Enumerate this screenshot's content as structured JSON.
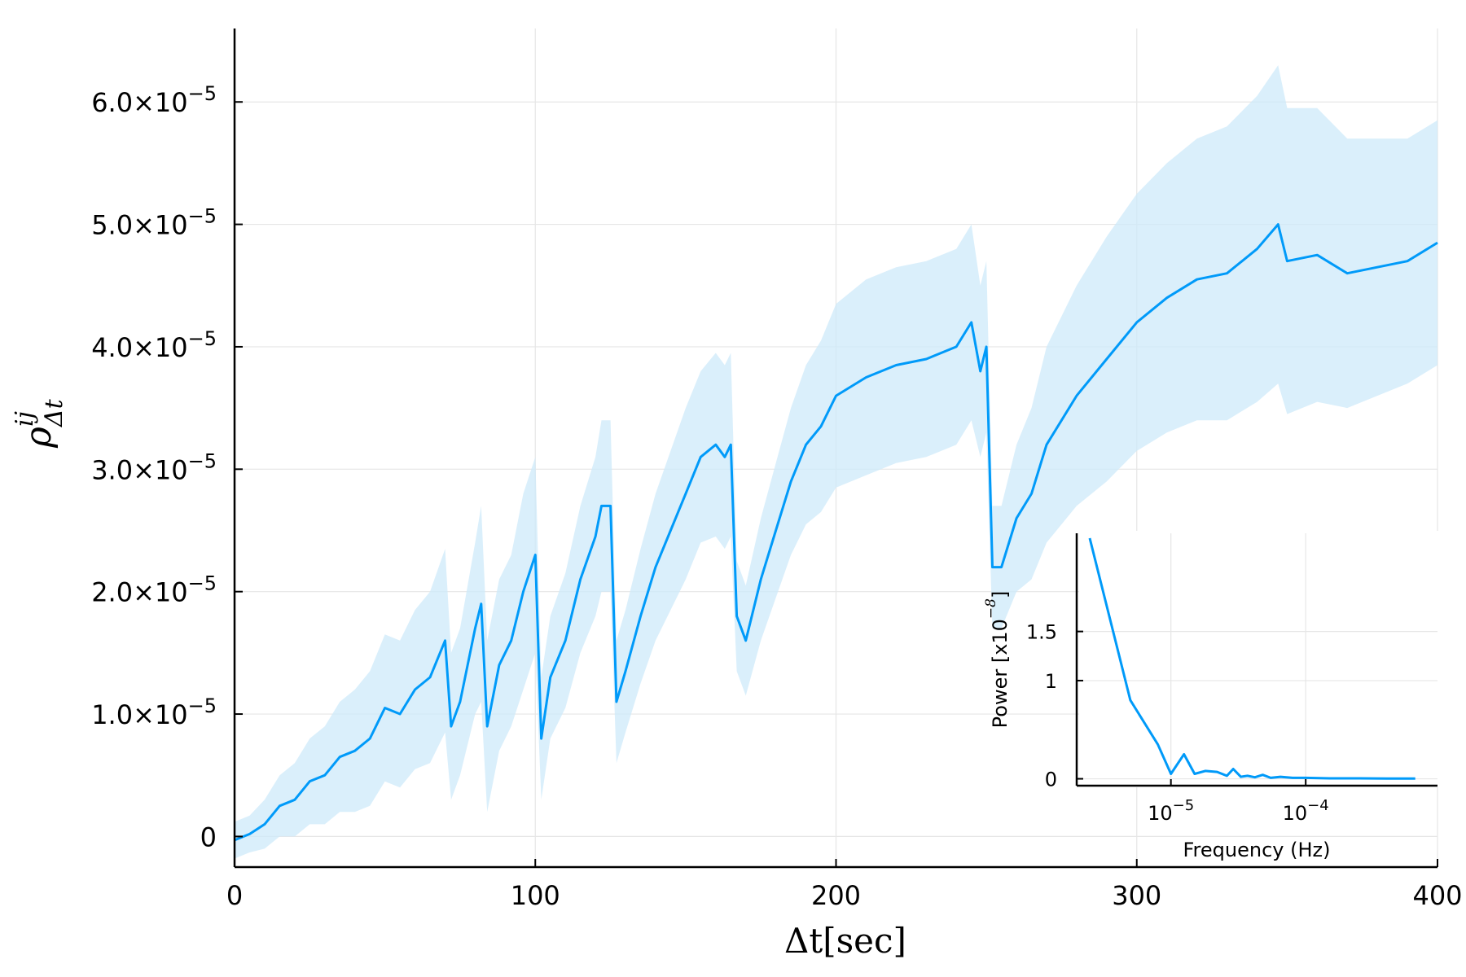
{
  "colors": {
    "series": "#009AF9",
    "band": "#cdeaf9",
    "grid": "#e6e6e6",
    "axis": "#000000",
    "background": "#ffffff"
  },
  "chart_data": [
    {
      "type": "line",
      "title": "",
      "xlabel": "Δt[sec]",
      "ylabel": "ρ",
      "ylabel_sup": "ij",
      "ylabel_sub": "Δt",
      "xlim": [
        0,
        400
      ],
      "ylim": [
        -2.5e-06,
        6.6e-05
      ],
      "xticks": [
        0,
        100,
        200,
        300,
        400
      ],
      "xtick_labels": [
        "0",
        "100",
        "200",
        "300",
        "400"
      ],
      "yticks": [
        0,
        1e-05,
        2e-05,
        3e-05,
        4e-05,
        5e-05,
        6e-05
      ],
      "ytick_labels": [
        {
          "base": "0",
          "exp": ""
        },
        {
          "base": "1.0×10",
          "exp": "−5"
        },
        {
          "base": "2.0×10",
          "exp": "−5"
        },
        {
          "base": "3.0×10",
          "exp": "−5"
        },
        {
          "base": "4.0×10",
          "exp": "−5"
        },
        {
          "base": "5.0×10",
          "exp": "−5"
        },
        {
          "base": "6.0×10",
          "exp": "−5"
        }
      ],
      "grid": true,
      "legend": "none",
      "series": [
        {
          "x": [
            0,
            5,
            10,
            15,
            20,
            25,
            30,
            35,
            40,
            45,
            50,
            55,
            60,
            65,
            70,
            72,
            75,
            80,
            82,
            84,
            88,
            92,
            96,
            98,
            100,
            102,
            105,
            110,
            115,
            120,
            122,
            125,
            127,
            130,
            135,
            140,
            145,
            150,
            155,
            160,
            163,
            165,
            167,
            170,
            175,
            180,
            185,
            190,
            195,
            200,
            210,
            220,
            230,
            240,
            245,
            248,
            250,
            252,
            255,
            260,
            265,
            270,
            280,
            290,
            300,
            310,
            320,
            330,
            340,
            347,
            350,
            360,
            370,
            380,
            390,
            400
          ],
          "y": [
            -3e-07,
            2e-07,
            1e-06,
            2.5e-06,
            3e-06,
            4.5e-06,
            5e-06,
            6.5e-06,
            7e-06,
            8e-06,
            1.05e-05,
            1e-05,
            1.2e-05,
            1.3e-05,
            1.6e-05,
            9e-06,
            1.1e-05,
            1.7e-05,
            1.9e-05,
            9e-06,
            1.4e-05,
            1.6e-05,
            2e-05,
            2.15e-05,
            2.3e-05,
            8e-06,
            1.3e-05,
            1.6e-05,
            2.1e-05,
            2.45e-05,
            2.7e-05,
            2.7e-05,
            1.1e-05,
            1.35e-05,
            1.8e-05,
            2.2e-05,
            2.5e-05,
            2.8e-05,
            3.1e-05,
            3.2e-05,
            3.1e-05,
            3.2e-05,
            1.8e-05,
            1.6e-05,
            2.1e-05,
            2.5e-05,
            2.9e-05,
            3.2e-05,
            3.35e-05,
            3.6e-05,
            3.75e-05,
            3.85e-05,
            3.9e-05,
            4e-05,
            4.2e-05,
            3.8e-05,
            4e-05,
            2.2e-05,
            2.2e-05,
            2.6e-05,
            2.8e-05,
            3.2e-05,
            3.6e-05,
            3.9e-05,
            4.2e-05,
            4.4e-05,
            4.55e-05,
            4.6e-05,
            4.8e-05,
            5e-05,
            4.7e-05,
            4.75e-05,
            4.6e-05,
            4.65e-05,
            4.7e-05,
            4.85e-05
          ],
          "band": [
            1.5e-06,
            1.5e-06,
            2e-06,
            2.5e-06,
            3e-06,
            3.5e-06,
            4e-06,
            4.5e-06,
            5e-06,
            5.5e-06,
            6e-06,
            6e-06,
            6.5e-06,
            7e-06,
            7.5e-06,
            6e-06,
            6e-06,
            7e-06,
            8e-06,
            7e-06,
            7e-06,
            7e-06,
            8e-06,
            8e-06,
            8e-06,
            5e-06,
            5e-06,
            5.5e-06,
            6e-06,
            6.5e-06,
            7e-06,
            7e-06,
            5e-06,
            5e-06,
            5.5e-06,
            6e-06,
            6.5e-06,
            7e-06,
            7e-06,
            7.5e-06,
            7.5e-06,
            7.5e-06,
            4.5e-06,
            4.5e-06,
            5e-06,
            5.5e-06,
            6e-06,
            6.5e-06,
            7e-06,
            7.5e-06,
            8e-06,
            8e-06,
            8e-06,
            8e-06,
            8e-06,
            7e-06,
            7e-06,
            5e-06,
            5e-06,
            6e-06,
            7e-06,
            8e-06,
            9e-06,
            1e-05,
            1.05e-05,
            1.1e-05,
            1.15e-05,
            1.2e-05,
            1.25e-05,
            1.3e-05,
            1.25e-05,
            1.2e-05,
            1.1e-05,
            1.05e-05,
            1e-05,
            1e-05
          ]
        }
      ]
    },
    {
      "type": "line",
      "title": "",
      "xlabel": "Frequency (Hz)",
      "ylabel_base": "Power [x10",
      "ylabel_exp": "−8",
      "ylabel_close": "]",
      "xscale": "log",
      "ylim": [
        -0.07,
        2.5
      ],
      "xtick_labels": [
        {
          "base": "10",
          "exp": "−5"
        },
        {
          "base": "10",
          "exp": "−4"
        }
      ],
      "xtick_values": [
        1e-05,
        0.0001
      ],
      "yticks": [
        0,
        1,
        1.5
      ],
      "ytick_labels": [
        "0",
        "1",
        "1.5"
      ],
      "grid": true,
      "legend": "none",
      "series": [
        {
          "x": [
            2.5e-06,
            5e-06,
            8e-06,
            1e-05,
            1.25e-05,
            1.5e-05,
            1.8e-05,
            2.2e-05,
            2.6e-05,
            2.9e-05,
            3.3e-05,
            3.7e-05,
            4.2e-05,
            4.8e-05,
            5.5e-05,
            6.5e-05,
            8e-05,
            0.0001,
            0.00015,
            0.00025,
            0.0004,
            0.00065
          ],
          "y": [
            2.45,
            0.8,
            0.35,
            0.05,
            0.25,
            0.05,
            0.08,
            0.07,
            0.03,
            0.1,
            0.02,
            0.03,
            0.015,
            0.04,
            0.01,
            0.02,
            0.01,
            0.01,
            0.005,
            0.005,
            0.003,
            0.003
          ]
        }
      ]
    }
  ]
}
